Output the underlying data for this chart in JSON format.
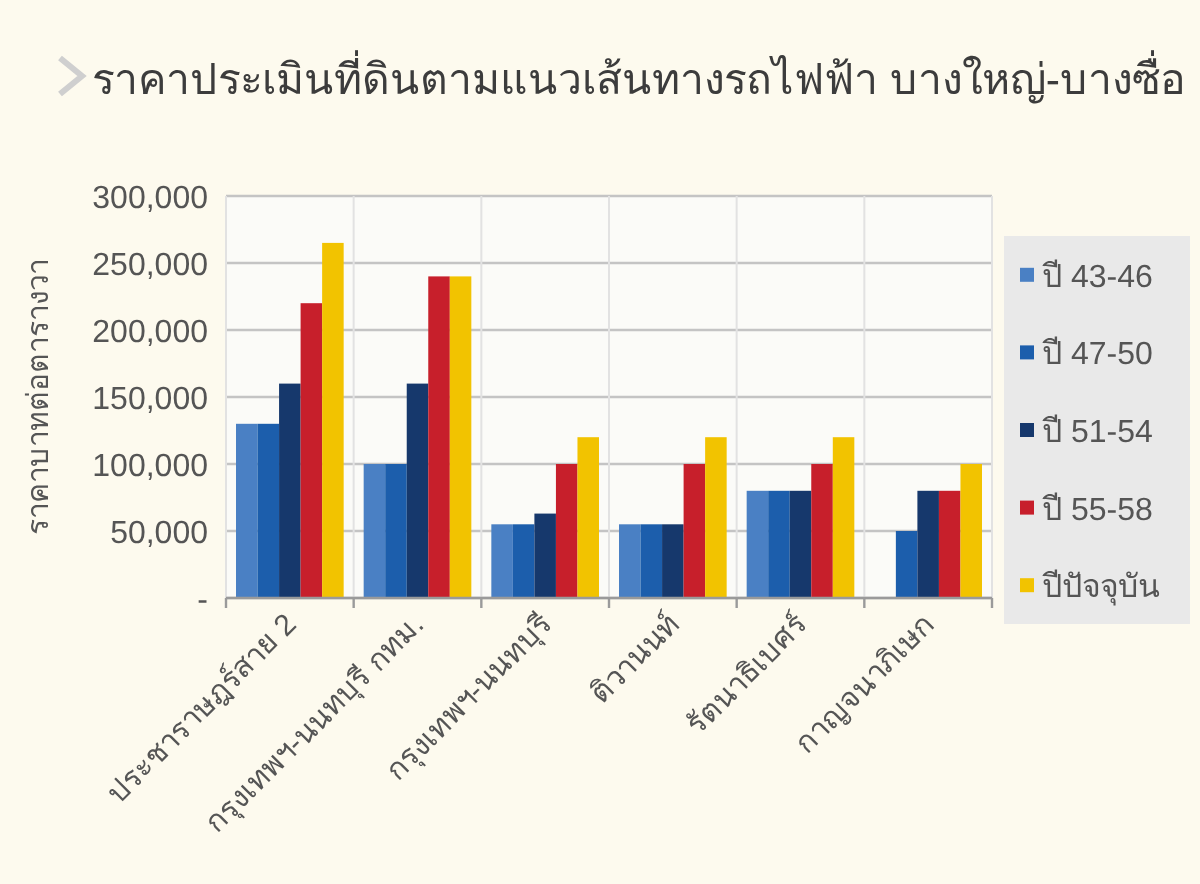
{
  "chart_data": {
    "type": "bar",
    "title": "ราคาประเมินที่ดินตามแนวเส้นทางรถไฟฟ้า บางใหญ่-บางซื่อ",
    "ylabel": "ราคาบาทต่อตารางวา",
    "categories": [
      "ประชาราษฎร์สาย 2",
      "กรุงเทพฯ-นนทบุรี กทม.",
      "กรุงเทพฯ-นนทบุรี",
      "ติวานนท์",
      "รัตนาธิเบศร์",
      "กาญจนาภิเษก"
    ],
    "series": [
      {
        "name": "ปี 43-46",
        "color": "#4a80c4",
        "values": [
          130000,
          100000,
          55000,
          55000,
          80000,
          null
        ]
      },
      {
        "name": "ปี 47-50",
        "color": "#1c5eac",
        "values": [
          130000,
          100000,
          55000,
          55000,
          80000,
          50000
        ]
      },
      {
        "name": "ปี 51-54",
        "color": "#16386c",
        "values": [
          160000,
          160000,
          63000,
          55000,
          80000,
          80000
        ]
      },
      {
        "name": "ปี 55-58",
        "color": "#c71f2b",
        "values": [
          220000,
          240000,
          100000,
          100000,
          100000,
          80000
        ]
      },
      {
        "name": "ปีปัจจุบัน",
        "color": "#f2c300",
        "values": [
          265000,
          240000,
          120000,
          120000,
          120000,
          100000
        ]
      }
    ],
    "ylim": [
      0,
      300000
    ],
    "yticks": [
      {
        "value": 0,
        "label": "-"
      },
      {
        "value": 50000,
        "label": "50,000"
      },
      {
        "value": 100000,
        "label": "100,000"
      },
      {
        "value": 150000,
        "label": "150,000"
      },
      {
        "value": 200000,
        "label": "200,000"
      },
      {
        "value": 250000,
        "label": "250,000"
      },
      {
        "value": 300000,
        "label": "300,000"
      }
    ],
    "grid": true,
    "legend": "right"
  }
}
